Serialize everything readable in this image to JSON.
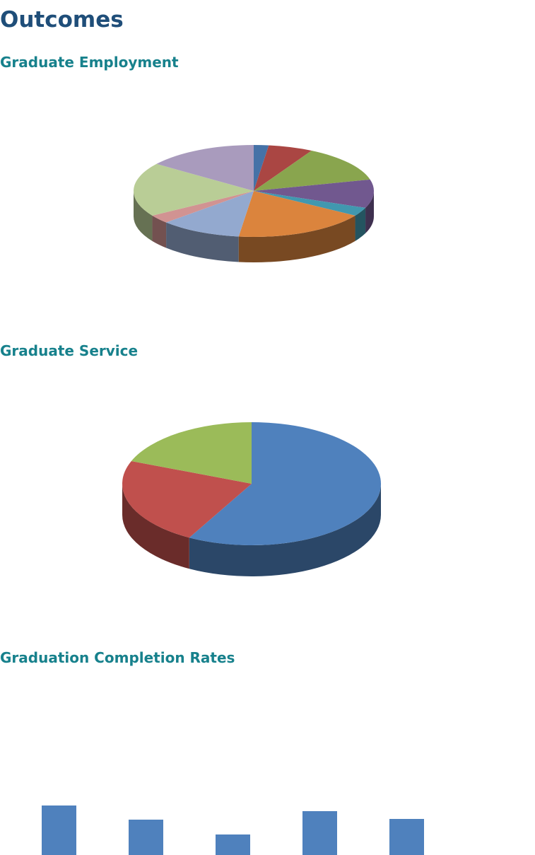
{
  "header": {
    "title": "Outcomes"
  },
  "chart_data": [
    {
      "type": "pie3d",
      "title": "Graduate Employment",
      "values": [
        2,
        6,
        13,
        10,
        3,
        18,
        11,
        3,
        19,
        15
      ],
      "colors": [
        "#4572a7",
        "#aa4643",
        "#89a54e",
        "#71588f",
        "#4198af",
        "#db843d",
        "#93a9cf",
        "#d19392",
        "#b9cd96",
        "#a99bbd"
      ]
    },
    {
      "type": "pie3d",
      "title": "Graduate Service",
      "values": [
        58,
        23,
        19
      ],
      "colors": [
        "#4f81bd",
        "#c0504d",
        "#9bbb59"
      ]
    },
    {
      "type": "bar",
      "title": "Graduation Completion Rates",
      "categories": [
        null,
        null,
        null,
        null,
        null
      ],
      "values": [
        70,
        50,
        29,
        62,
        51
      ],
      "color": "#4f81bd"
    }
  ]
}
